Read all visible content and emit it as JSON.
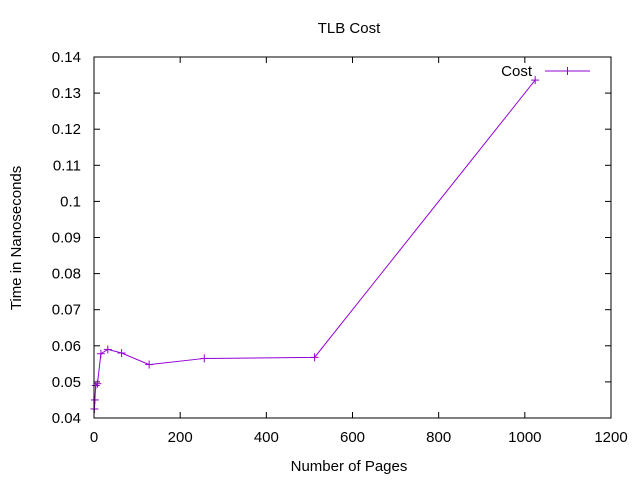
{
  "chart_data": {
    "type": "line",
    "title": "TLB Cost",
    "xlabel": "Number of Pages",
    "ylabel": "Time in Nanoseconds",
    "xlim": [
      0,
      1200
    ],
    "ylim": [
      0.04,
      0.14
    ],
    "x_ticks": [
      0,
      200,
      400,
      600,
      800,
      1000,
      1200
    ],
    "y_ticks": [
      0.04,
      0.05,
      0.06,
      0.07,
      0.08,
      0.09,
      0.1,
      0.11,
      0.12,
      0.13,
      0.14
    ],
    "x_tick_labels": [
      "0",
      "200",
      "400",
      "600",
      "800",
      "1000",
      "1200"
    ],
    "y_tick_labels": [
      "0.04",
      "0.05",
      "0.06",
      "0.07",
      "0.08",
      "0.09",
      "0.1",
      "0.11",
      "0.12",
      "0.13",
      "0.14"
    ],
    "grid": false,
    "legend_position": "top-right",
    "series": [
      {
        "name": "Cost",
        "color": "#9400d3",
        "marker": "plus",
        "x": [
          1,
          2,
          4,
          8,
          16,
          32,
          64,
          128,
          256,
          512,
          1024
        ],
        "y": [
          0.0425,
          0.045,
          0.049,
          0.0495,
          0.0578,
          0.059,
          0.058,
          0.0548,
          0.0565,
          0.0568,
          0.1336
        ]
      }
    ]
  }
}
